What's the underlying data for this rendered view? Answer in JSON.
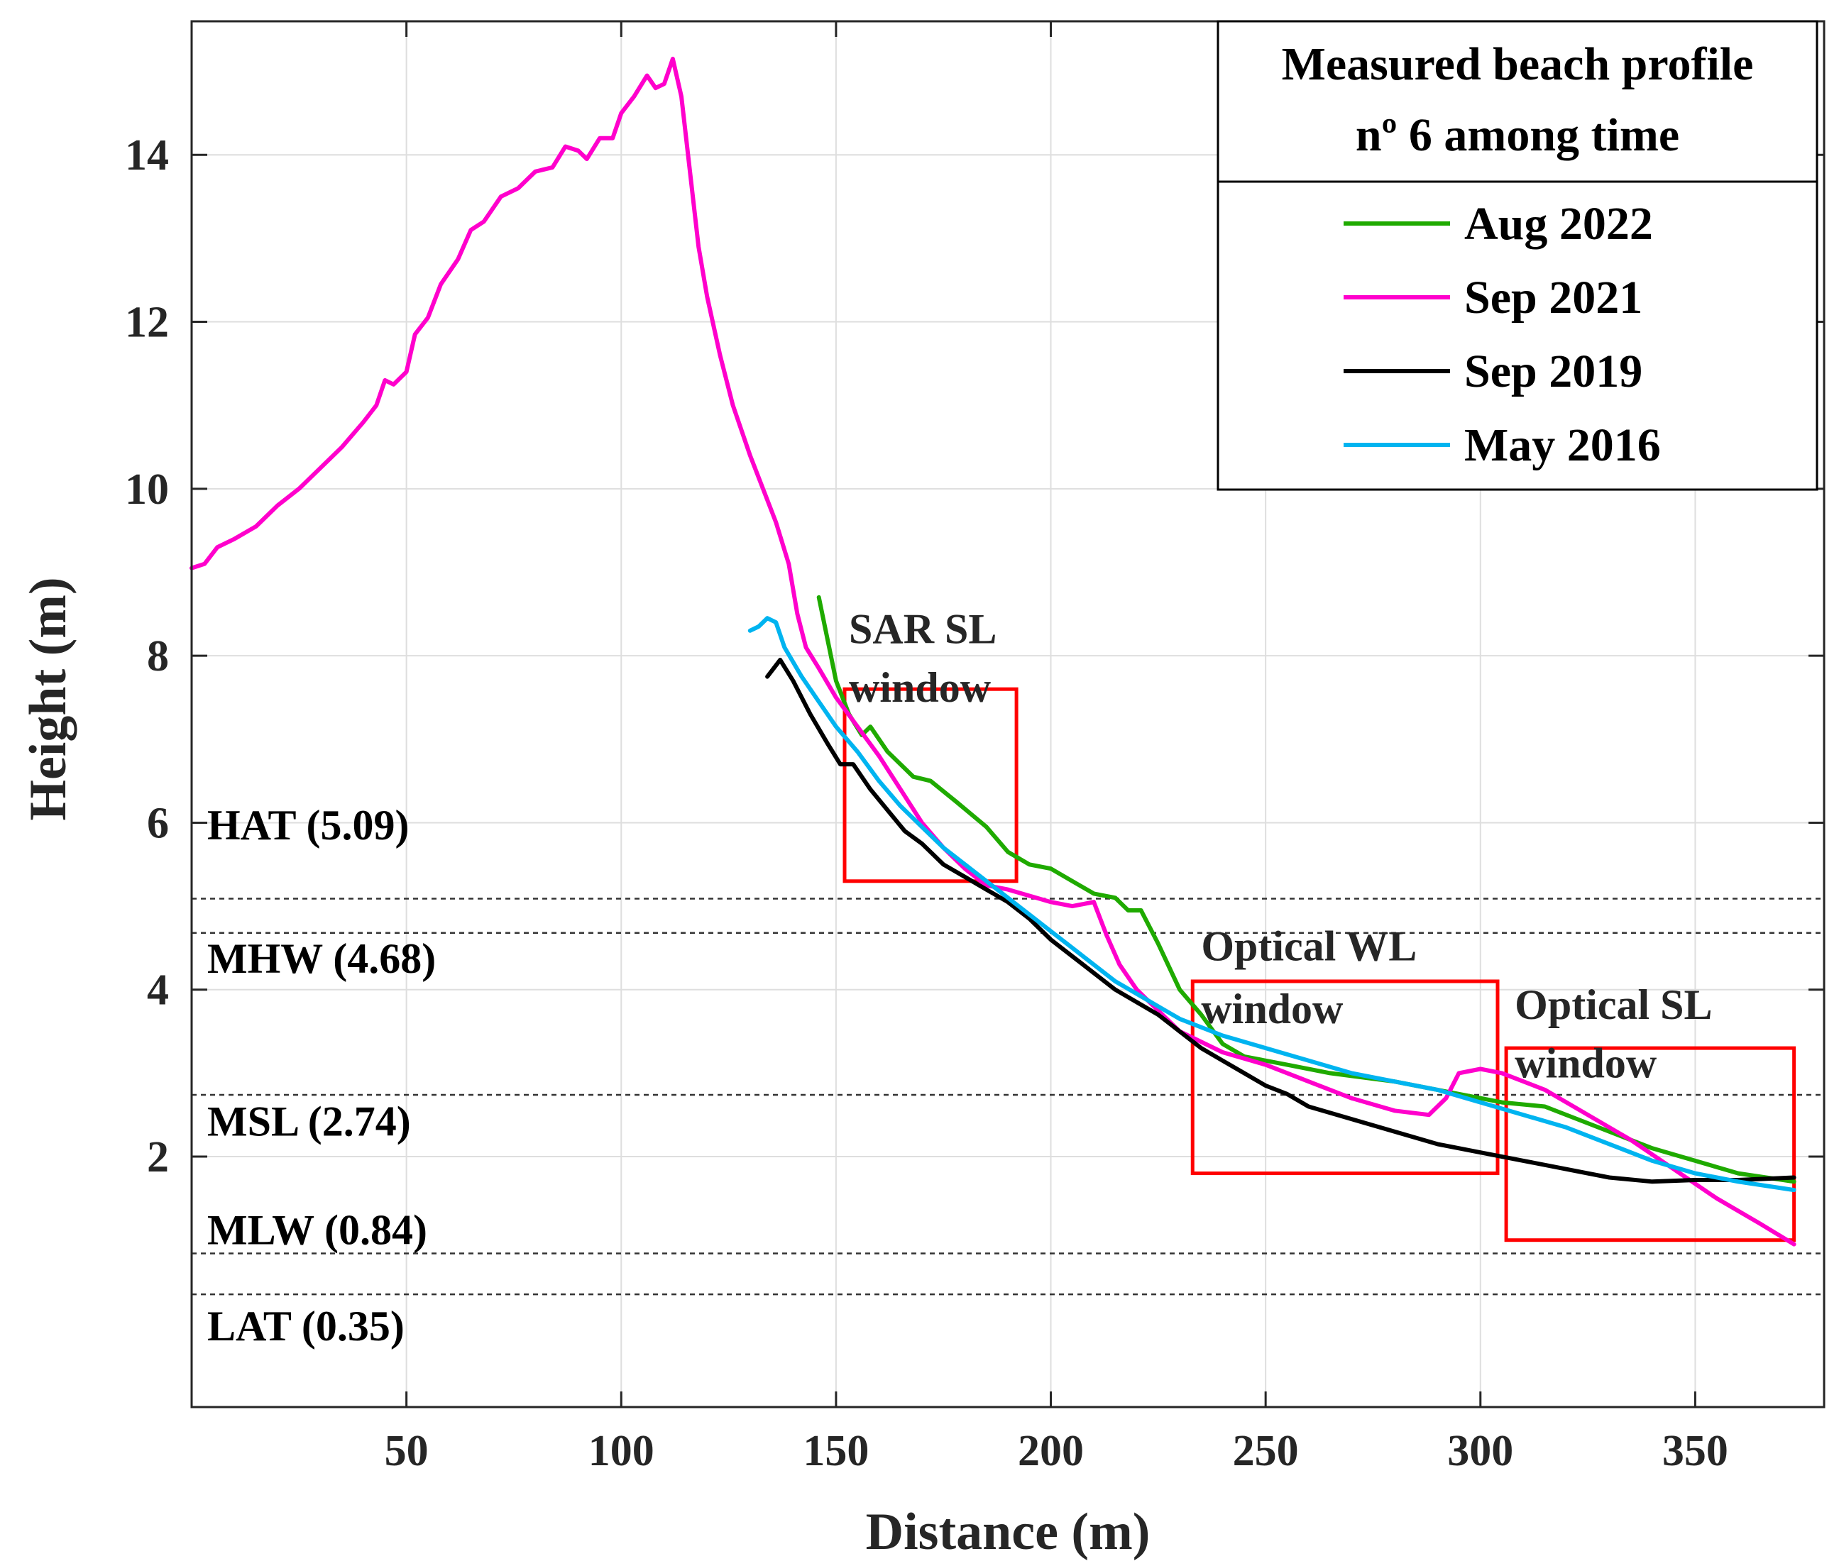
{
  "chart_data": {
    "type": "line",
    "xlabel": "Distance (m)",
    "ylabel": "Height (m)",
    "xlim": [
      0,
      380
    ],
    "ylim": [
      -1.0,
      15.6
    ],
    "xticks": [
      50,
      100,
      150,
      200,
      250,
      300,
      350
    ],
    "yticks": [
      2,
      4,
      6,
      8,
      10,
      12,
      14
    ],
    "grid": true,
    "legend": {
      "placement": "top-right",
      "title_lines": [
        "Measured beach profile",
        "nº 6 among time"
      ]
    },
    "series": [
      {
        "name": "Aug 2022",
        "color": "#1faa00",
        "points": [
          [
            146,
            8.7
          ],
          [
            148,
            8.2
          ],
          [
            150,
            7.7
          ],
          [
            153,
            7.3
          ],
          [
            156,
            7.05
          ],
          [
            158,
            7.15
          ],
          [
            162,
            6.85
          ],
          [
            168,
            6.55
          ],
          [
            172,
            6.5
          ],
          [
            178,
            6.25
          ],
          [
            185,
            5.95
          ],
          [
            190,
            5.65
          ],
          [
            195,
            5.5
          ],
          [
            200,
            5.45
          ],
          [
            205,
            5.3
          ],
          [
            210,
            5.15
          ],
          [
            215,
            5.1
          ],
          [
            218,
            4.95
          ],
          [
            221,
            4.95
          ],
          [
            225,
            4.55
          ],
          [
            230,
            4.0
          ],
          [
            235,
            3.7
          ],
          [
            240,
            3.35
          ],
          [
            245,
            3.2
          ],
          [
            255,
            3.1
          ],
          [
            265,
            3.0
          ],
          [
            280,
            2.9
          ],
          [
            295,
            2.75
          ],
          [
            305,
            2.65
          ],
          [
            315,
            2.6
          ],
          [
            325,
            2.4
          ],
          [
            340,
            2.1
          ],
          [
            350,
            1.95
          ],
          [
            360,
            1.8
          ],
          [
            373,
            1.7
          ]
        ]
      },
      {
        "name": "Sep 2021",
        "color": "#ff00cc",
        "points": [
          [
            0,
            9.05
          ],
          [
            3,
            9.1
          ],
          [
            6,
            9.3
          ],
          [
            10,
            9.4
          ],
          [
            15,
            9.55
          ],
          [
            20,
            9.8
          ],
          [
            25,
            10.0
          ],
          [
            30,
            10.25
          ],
          [
            35,
            10.5
          ],
          [
            40,
            10.8
          ],
          [
            43,
            11.0
          ],
          [
            45,
            11.3
          ],
          [
            47,
            11.25
          ],
          [
            50,
            11.4
          ],
          [
            52,
            11.85
          ],
          [
            55,
            12.05
          ],
          [
            58,
            12.45
          ],
          [
            62,
            12.75
          ],
          [
            65,
            13.1
          ],
          [
            68,
            13.2
          ],
          [
            72,
            13.5
          ],
          [
            76,
            13.6
          ],
          [
            80,
            13.8
          ],
          [
            84,
            13.85
          ],
          [
            87,
            14.1
          ],
          [
            90,
            14.05
          ],
          [
            92,
            13.95
          ],
          [
            95,
            14.2
          ],
          [
            98,
            14.2
          ],
          [
            100,
            14.5
          ],
          [
            103,
            14.7
          ],
          [
            106,
            14.95
          ],
          [
            108,
            14.8
          ],
          [
            110,
            14.85
          ],
          [
            112,
            15.15
          ],
          [
            114,
            14.7
          ],
          [
            116,
            13.8
          ],
          [
            118,
            12.9
          ],
          [
            120,
            12.3
          ],
          [
            123,
            11.6
          ],
          [
            126,
            11.0
          ],
          [
            130,
            10.4
          ],
          [
            133,
            10.0
          ],
          [
            136,
            9.6
          ],
          [
            139,
            9.1
          ],
          [
            141,
            8.5
          ],
          [
            143,
            8.1
          ],
          [
            146,
            7.85
          ],
          [
            150,
            7.5
          ],
          [
            155,
            7.15
          ],
          [
            160,
            6.8
          ],
          [
            165,
            6.4
          ],
          [
            170,
            6.0
          ],
          [
            175,
            5.7
          ],
          [
            180,
            5.45
          ],
          [
            185,
            5.25
          ],
          [
            190,
            5.2
          ],
          [
            200,
            5.05
          ],
          [
            205,
            5.0
          ],
          [
            210,
            5.05
          ],
          [
            213,
            4.65
          ],
          [
            216,
            4.3
          ],
          [
            220,
            4.0
          ],
          [
            225,
            3.75
          ],
          [
            230,
            3.5
          ],
          [
            240,
            3.25
          ],
          [
            250,
            3.1
          ],
          [
            260,
            2.9
          ],
          [
            270,
            2.7
          ],
          [
            280,
            2.55
          ],
          [
            288,
            2.5
          ],
          [
            292,
            2.7
          ],
          [
            295,
            3.0
          ],
          [
            300,
            3.05
          ],
          [
            305,
            3.0
          ],
          [
            315,
            2.8
          ],
          [
            325,
            2.5
          ],
          [
            335,
            2.2
          ],
          [
            345,
            1.85
          ],
          [
            355,
            1.5
          ],
          [
            365,
            1.2
          ],
          [
            373,
            0.95
          ]
        ]
      },
      {
        "name": "Sep 2019",
        "color": "#000000",
        "points": [
          [
            134,
            7.75
          ],
          [
            137,
            7.95
          ],
          [
            140,
            7.7
          ],
          [
            144,
            7.3
          ],
          [
            148,
            6.95
          ],
          [
            151,
            6.7
          ],
          [
            154,
            6.7
          ],
          [
            158,
            6.4
          ],
          [
            162,
            6.15
          ],
          [
            166,
            5.9
          ],
          [
            170,
            5.75
          ],
          [
            175,
            5.5
          ],
          [
            180,
            5.35
          ],
          [
            185,
            5.2
          ],
          [
            190,
            5.05
          ],
          [
            195,
            4.85
          ],
          [
            200,
            4.6
          ],
          [
            205,
            4.4
          ],
          [
            210,
            4.2
          ],
          [
            215,
            4.0
          ],
          [
            220,
            3.85
          ],
          [
            225,
            3.7
          ],
          [
            230,
            3.5
          ],
          [
            235,
            3.3
          ],
          [
            240,
            3.15
          ],
          [
            245,
            3.0
          ],
          [
            250,
            2.85
          ],
          [
            255,
            2.75
          ],
          [
            260,
            2.6
          ],
          [
            270,
            2.45
          ],
          [
            280,
            2.3
          ],
          [
            290,
            2.15
          ],
          [
            300,
            2.05
          ],
          [
            310,
            1.95
          ],
          [
            320,
            1.85
          ],
          [
            330,
            1.75
          ],
          [
            340,
            1.7
          ],
          [
            350,
            1.72
          ],
          [
            360,
            1.72
          ],
          [
            373,
            1.75
          ]
        ]
      },
      {
        "name": "May 2016",
        "color": "#00b4f0",
        "points": [
          [
            130,
            8.3
          ],
          [
            132,
            8.35
          ],
          [
            134,
            8.45
          ],
          [
            136,
            8.4
          ],
          [
            138,
            8.1
          ],
          [
            142,
            7.75
          ],
          [
            146,
            7.45
          ],
          [
            150,
            7.15
          ],
          [
            155,
            6.85
          ],
          [
            160,
            6.5
          ],
          [
            165,
            6.2
          ],
          [
            170,
            5.95
          ],
          [
            175,
            5.7
          ],
          [
            180,
            5.5
          ],
          [
            185,
            5.3
          ],
          [
            190,
            5.1
          ],
          [
            195,
            4.9
          ],
          [
            200,
            4.7
          ],
          [
            205,
            4.5
          ],
          [
            210,
            4.3
          ],
          [
            215,
            4.1
          ],
          [
            220,
            3.95
          ],
          [
            225,
            3.8
          ],
          [
            230,
            3.65
          ],
          [
            240,
            3.45
          ],
          [
            250,
            3.3
          ],
          [
            260,
            3.15
          ],
          [
            270,
            3.0
          ],
          [
            280,
            2.9
          ],
          [
            290,
            2.8
          ],
          [
            300,
            2.65
          ],
          [
            310,
            2.5
          ],
          [
            320,
            2.35
          ],
          [
            330,
            2.15
          ],
          [
            340,
            1.95
          ],
          [
            350,
            1.8
          ],
          [
            360,
            1.7
          ],
          [
            373,
            1.6
          ]
        ]
      }
    ],
    "reference_lines": [
      {
        "label": "HAT (5.09)",
        "value": 5.09
      },
      {
        "label": "MHW (4.68)",
        "value": 4.68
      },
      {
        "label": "MSL (2.74)",
        "value": 2.74
      },
      {
        "label": "MLW (0.84)",
        "value": 0.84
      },
      {
        "label": "LAT (0.35)",
        "value": 0.35
      }
    ],
    "windows": [
      {
        "label_lines": [
          "SAR SL",
          "window"
        ],
        "x_range": [
          152,
          192
        ],
        "y_range": [
          5.3,
          7.6
        ]
      },
      {
        "label_lines": [
          "Optical WL",
          "window"
        ],
        "x_range": [
          233,
          304
        ],
        "y_range": [
          1.8,
          4.1
        ]
      },
      {
        "label_lines": [
          "Optical SL",
          "window"
        ],
        "x_range": [
          306,
          373
        ],
        "y_range": [
          1.0,
          3.3
        ]
      }
    ],
    "window_color": "#ff0000"
  }
}
